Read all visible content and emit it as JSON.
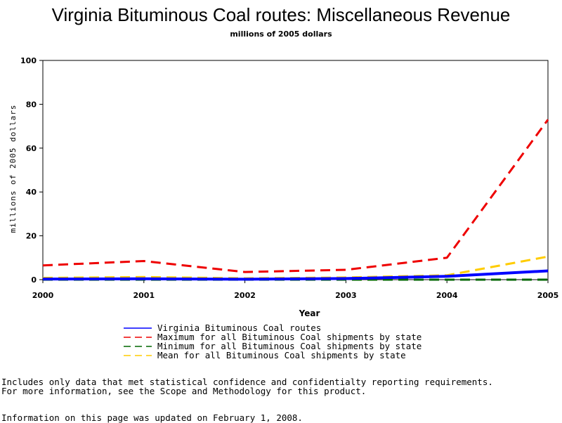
{
  "title": "Virginia Bituminous Coal routes: Miscellaneous Revenue",
  "subtitle": "millions of 2005 dollars",
  "notes": {
    "line1": "Includes only data that met statistical confidence and confidentialty reporting requirements.",
    "line2": "For more information, see the Scope and Methodology for this product.",
    "updated": "Information on this page was updated on February 1, 2008."
  },
  "chart_data": {
    "type": "line",
    "title": "Virginia Bituminous Coal routes: Miscellaneous Revenue",
    "subtitle": "millions of 2005 dollars",
    "xlabel": "Year",
    "ylabel": "millions of 2005 dollars",
    "x": [
      2000,
      2001,
      2002,
      2003,
      2004,
      2005
    ],
    "x_ticks": [
      "2000",
      "2001",
      "2002",
      "2003",
      "2004",
      "2005"
    ],
    "y_ticks": [
      "0",
      "20",
      "40",
      "60",
      "80",
      "100"
    ],
    "xlim": [
      2000,
      2005
    ],
    "ylim": [
      0,
      100
    ],
    "grid": false,
    "legend_position": "bottom",
    "series": [
      {
        "name": "Virginia Bituminous Coal routes",
        "values": [
          0.3,
          0.4,
          0.2,
          0.5,
          1.5,
          4.0
        ],
        "color": "#0000ff",
        "dash": "solid",
        "width": "thick"
      },
      {
        "name": "Maximum for all Bituminous Coal shipments by state",
        "values": [
          6.5,
          8.5,
          3.5,
          4.5,
          10.0,
          73.0
        ],
        "color": "#ee0000",
        "dash": "dashed",
        "width": "normal"
      },
      {
        "name": "Minimum for all Bituminous Coal shipments by state",
        "values": [
          0.0,
          0.0,
          0.0,
          0.0,
          0.0,
          0.0
        ],
        "color": "#006600",
        "dash": "dashed",
        "width": "normal"
      },
      {
        "name": "Mean for all Bituminous Coal shipments by state",
        "values": [
          0.8,
          1.2,
          0.6,
          1.0,
          2.0,
          10.5
        ],
        "color": "#ffcc00",
        "dash": "dashed",
        "width": "normal"
      }
    ]
  }
}
